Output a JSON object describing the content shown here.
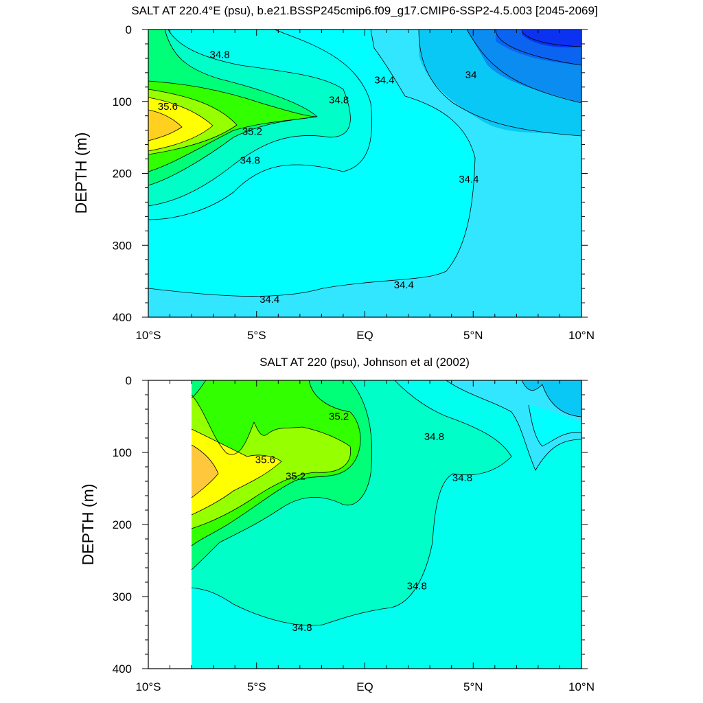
{
  "chart_data": [
    {
      "type": "contour",
      "title": "SALT AT 220.4°E (psu), b.e21.BSSP245cmip6.f09_g17.CMIP6-SSP2-4.5.003 [2045-2069]",
      "ylabel": "DEPTH (m)",
      "xlabel": "",
      "xlim": [
        -10,
        10
      ],
      "ylim": [
        0,
        400
      ],
      "y_inverted": true,
      "x_ticks": [
        -10,
        -5,
        0,
        5,
        10
      ],
      "x_tick_labels": [
        "10°S",
        "5°S",
        "EQ",
        "5°N",
        "10°N"
      ],
      "y_ticks": [
        0,
        100,
        200,
        300,
        400
      ],
      "y_tick_labels": [
        "0",
        "100",
        "200",
        "300",
        "400"
      ],
      "contour_interval": 0.2,
      "contour_labels": [
        {
          "text": "34.8",
          "x": -6.7,
          "y": 35
        },
        {
          "text": "34.4",
          "x": 0.9,
          "y": 70
        },
        {
          "text": "34",
          "x": 4.9,
          "y": 63
        },
        {
          "text": "35.6",
          "x": -9.1,
          "y": 107
        },
        {
          "text": "34.8",
          "x": -1.2,
          "y": 98
        },
        {
          "text": "35.2",
          "x": -5.2,
          "y": 142
        },
        {
          "text": "34.8",
          "x": -5.3,
          "y": 182
        },
        {
          "text": "34.4",
          "x": 4.8,
          "y": 208
        },
        {
          "text": "34.4",
          "x": 1.8,
          "y": 355
        },
        {
          "text": "34.4",
          "x": -4.4,
          "y": 375
        }
      ],
      "fill_colors": {
        "le_33_8": "#0a32f0",
        "34_0": "#0a8cf0",
        "34_2": "#0ac8f5",
        "34_4": "#33e6ff",
        "34_6": "#00ffee",
        "34_8": "#00ffc8",
        "35_0": "#00ff78",
        "35_2": "#32ff00",
        "35_4": "#96ff00",
        "35_6": "#ffff00",
        "35_8": "#ffd020"
      }
    },
    {
      "type": "contour",
      "title": "SALT AT 220 (psu), Johnson et al (2002)",
      "ylabel": "DEPTH (m)",
      "xlabel": "",
      "xlim": [
        -10,
        10
      ],
      "ylim": [
        0,
        400
      ],
      "y_inverted": true,
      "x_ticks": [
        -10,
        -5,
        0,
        5,
        10
      ],
      "x_tick_labels": [
        "10°S",
        "5°S",
        "EQ",
        "5°N",
        "10°N"
      ],
      "y_ticks": [
        0,
        100,
        200,
        300,
        400
      ],
      "y_tick_labels": [
        "0",
        "100",
        "200",
        "300",
        "400"
      ],
      "data_x_range": [
        -8,
        10
      ],
      "contour_interval": 0.2,
      "contour_labels": [
        {
          "text": "35.2",
          "x": -1.2,
          "y": 50
        },
        {
          "text": "34.8",
          "x": 3.2,
          "y": 78
        },
        {
          "text": "35.6",
          "x": -4.6,
          "y": 110
        },
        {
          "text": "35.2",
          "x": -3.2,
          "y": 133
        },
        {
          "text": "34.8",
          "x": 4.5,
          "y": 135
        },
        {
          "text": "34.8",
          "x": 2.4,
          "y": 285
        },
        {
          "text": "34.8",
          "x": -2.9,
          "y": 343
        }
      ],
      "fill_colors": {
        "34_2": "#0ac8f5",
        "34_4": "#33e6ff",
        "34_6": "#00ffee",
        "34_8": "#00ffc8",
        "35_0": "#00ff78",
        "35_2": "#32ff00",
        "35_4": "#96ff00",
        "35_6": "#ffff00",
        "35_8": "#ffc83c"
      }
    }
  ]
}
